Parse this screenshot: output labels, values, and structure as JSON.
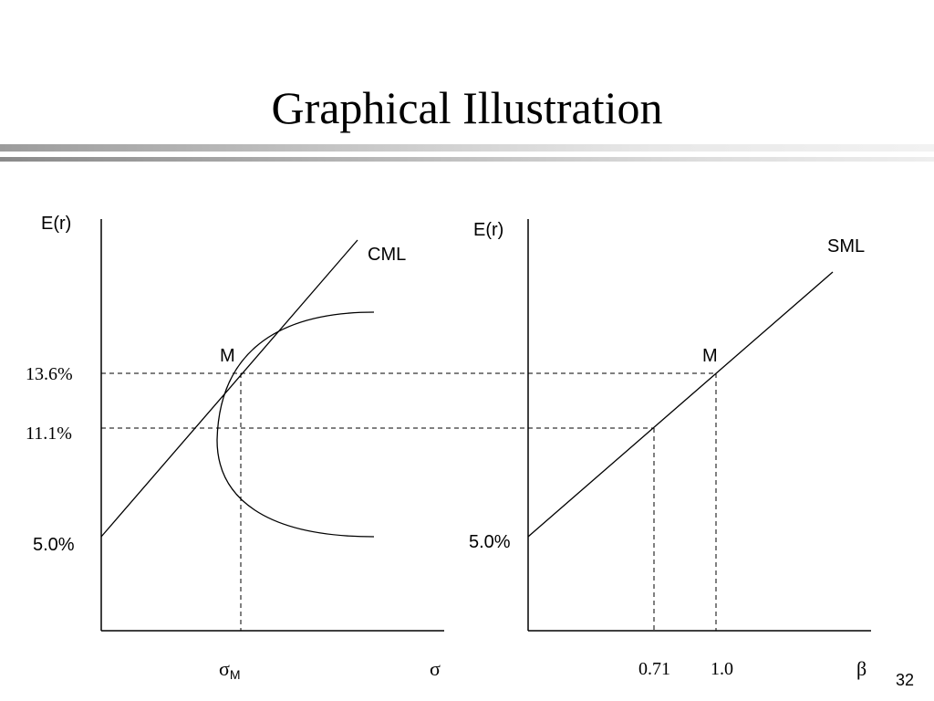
{
  "slide": {
    "title": "Graphical Illustration",
    "page_number": "32"
  },
  "left_panel": {
    "y_axis_label": "E(r)",
    "x_axis_label": "σ",
    "line_label": "CML",
    "point_label": "M",
    "sigma_m_symbol": "σ",
    "sigma_m_subscript": "M",
    "y_tick_labels": [
      "13.6%",
      "11.1%",
      "5.0%"
    ]
  },
  "right_panel": {
    "y_axis_label": "E(r)",
    "x_axis_label": "β",
    "line_label": "SML",
    "point_label": "M",
    "y_tick_label": "5.0%",
    "x_tick_labels": [
      "0.71",
      "1.0"
    ]
  },
  "values": {
    "risk_free_rate": 5.0,
    "market_return": 13.6,
    "asset_return": 11.1,
    "asset_beta": 0.71,
    "market_beta": 1.0
  },
  "colors": {
    "ink": "#000000",
    "background": "#ffffff"
  }
}
